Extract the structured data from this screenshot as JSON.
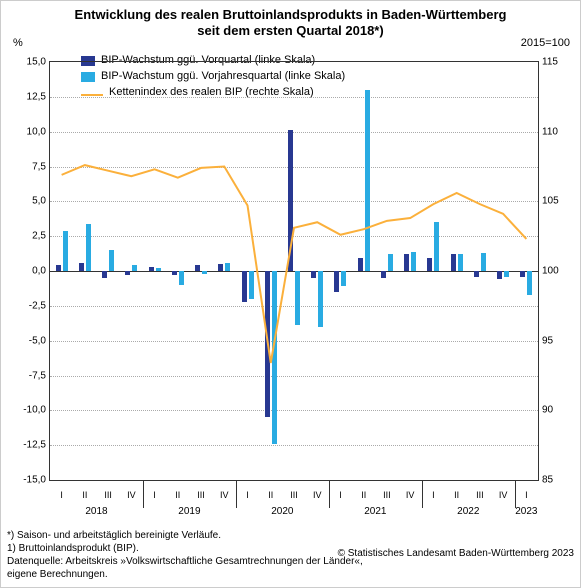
{
  "title_line1": "Entwicklung des realen Bruttoinlandsprodukts in Baden-Württemberg",
  "title_line2": "seit dem ersten Quartal 2018*)",
  "left_axis_unit": "%",
  "right_axis_label": "2015=100",
  "legend": {
    "seriesA": "BIP-Wachstum ggü. Vorquartal (linke Skala)",
    "seriesB": "BIP-Wachstum ggü. Vorjahresquartal (linke Skala)",
    "seriesC": "Kettenindex des realen BIP (rechte Skala)"
  },
  "colors": {
    "seriesA": "#283891",
    "seriesB": "#29abe2",
    "seriesC": "#fbb03b",
    "grid": "#b3b3b3",
    "axis": "#333333",
    "bg": "#ffffff"
  },
  "left_ticks": [
    "-15,0",
    "-12,5",
    "-10,0",
    "-7,5",
    "-5,0",
    "-2,5",
    "0,0",
    "2,5",
    "5,0",
    "7,5",
    "10,0",
    "12,5",
    "15,0"
  ],
  "right_ticks": [
    "85",
    "90",
    "95",
    "100",
    "105",
    "110",
    "115"
  ],
  "ylim_left": [
    -15,
    15
  ],
  "ylim_right": [
    85,
    115
  ],
  "years": [
    2018,
    2019,
    2020,
    2021,
    2022,
    2023
  ],
  "quarters": [
    "I",
    "II",
    "III",
    "IV",
    "I",
    "II",
    "III",
    "IV",
    "I",
    "II",
    "III",
    "IV",
    "I",
    "II",
    "III",
    "IV",
    "I",
    "II",
    "III",
    "IV",
    "I"
  ],
  "seriesA_vals": [
    0.4,
    0.6,
    -0.5,
    -0.3,
    0.3,
    -0.3,
    0.4,
    0.5,
    -2.2,
    -10.5,
    10.1,
    -0.5,
    -1.5,
    0.9,
    -0.5,
    1.2,
    0.9,
    1.2,
    -0.4,
    -0.6,
    -0.4
  ],
  "seriesB_vals": [
    2.9,
    3.4,
    1.5,
    0.4,
    0.2,
    -1.0,
    -0.2,
    0.6,
    -2.0,
    -12.4,
    -3.9,
    -4.0,
    -1.1,
    13.0,
    1.2,
    1.4,
    3.5,
    1.2,
    1.3,
    -0.4,
    -1.7
  ],
  "seriesC_vals": [
    106.9,
    107.6,
    107.2,
    106.8,
    107.3,
    106.7,
    107.4,
    107.5,
    104.7,
    93.4,
    103.1,
    103.5,
    102.6,
    103.0,
    103.6,
    103.8,
    104.8,
    105.6,
    104.8,
    104.1,
    102.3
  ],
  "footnote1": "*) Saison- und arbeitstäglich bereinigte Verläufe.",
  "footnote2": "1) Bruttoinlandsprodukt (BIP).",
  "footnote3": "Datenquelle: Arbeitskreis »Volkswirtschaftliche Gesamtrechnungen der Länder«,",
  "footnote4": "eigene Berechnungen.",
  "copyright": "© Statistisches Landesamt Baden-Württemberg 2023"
}
